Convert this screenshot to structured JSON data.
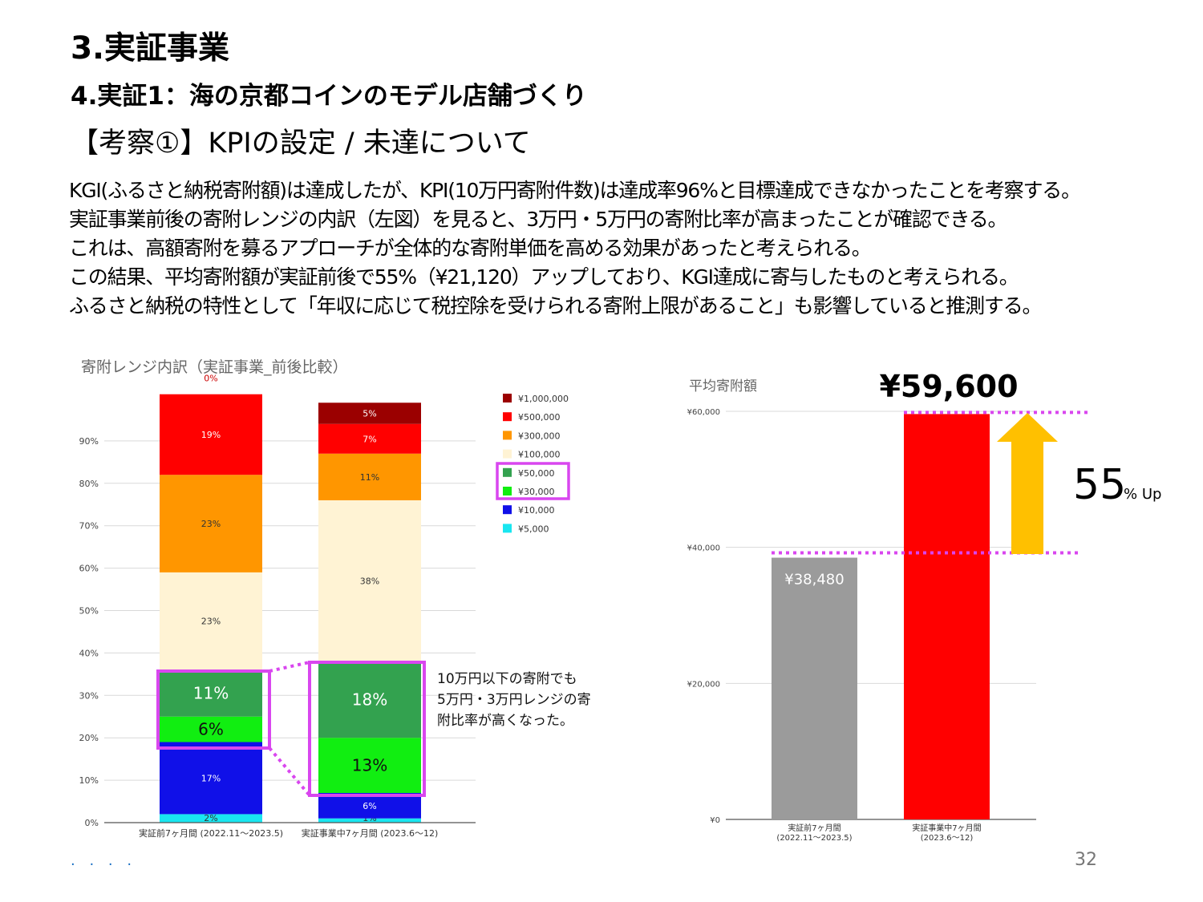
{
  "heading": {
    "section": "3.実証事業",
    "subsection": "4.実証1：海の京都コインのモデル店舗づくり",
    "topic": "【考察①】KPIの設定 / 未達について"
  },
  "body_lines": [
    "KGI(ふるさと納税寄附額)は達成したが、KPI(10万円寄附件数)は達成率96%と目標達成できなかったことを考察する。",
    "実証事業前後の寄附レンジの内訳（左図）を見ると、3万円・5万円の寄附比率が高まったことが確認できる。",
    "これは、高額寄附を募るアプローチが全体的な寄附単価を高める効果があったと考えられる。",
    "この結果、平均寄附額が実証前後で55%（¥21,120）アップしており、KGI達成に寄与したものと考えられる。",
    "ふるさと納税の特性として「年収に応じて税控除を受けられる寄附上限があること」も影響していると推測する。"
  ],
  "chart_data": [
    {
      "type": "bar",
      "stacked": true,
      "title": "寄附レンジ内訳（実証事業_前後比較）",
      "categories": [
        "実証前7ヶ月間 (2022.11～2023.5)",
        "実証事業中7ヶ月間 (2023.6～12)"
      ],
      "ylim": [
        0,
        100
      ],
      "yticks": [
        "0%",
        "10%",
        "20%",
        "30%",
        "40%",
        "50%",
        "60%",
        "70%",
        "80%",
        "90%"
      ],
      "series": [
        {
          "name": "¥5,000",
          "color": "#19e6f0",
          "values": [
            2,
            1
          ],
          "labels": [
            "2%",
            "1%"
          ],
          "emph": false
        },
        {
          "name": "¥10,000",
          "color": "#1010e8",
          "values": [
            17,
            6
          ],
          "labels": [
            "17%",
            "6%"
          ],
          "emph": false
        },
        {
          "name": "¥30,000",
          "color": "#11ee11",
          "values": [
            6,
            13
          ],
          "labels": [
            "6%",
            "13%"
          ],
          "emph": true
        },
        {
          "name": "¥50,000",
          "color": "#33a24f",
          "values": [
            11,
            18
          ],
          "labels": [
            "11%",
            "18%"
          ],
          "emph": true
        },
        {
          "name": "¥100,000",
          "color": "#fff3d4",
          "values": [
            23,
            38
          ],
          "labels": [
            "23%",
            "38%"
          ],
          "emph": false
        },
        {
          "name": "¥300,000",
          "color": "#ff9600",
          "values": [
            23,
            11
          ],
          "labels": [
            "23%",
            "11%"
          ],
          "emph": false
        },
        {
          "name": "¥500,000",
          "color": "#ff0000",
          "values": [
            19,
            7
          ],
          "labels": [
            "19%",
            "7%"
          ],
          "emph": false
        },
        {
          "name": "¥1,000,000",
          "color": "#9b0000",
          "values": [
            0,
            5
          ],
          "labels": [
            "0%",
            "5%"
          ],
          "emph": false
        }
      ],
      "legend": [
        "¥1,000,000",
        "¥500,000",
        "¥300,000",
        "¥100,000",
        "¥50,000",
        "¥30,000",
        "¥10,000",
        "¥5,000"
      ],
      "legend_position": "right",
      "annotation": [
        "10万円以下の寄附でも",
        "5万円・3万円レンジの寄",
        "附比率が高くなった。"
      ]
    },
    {
      "type": "bar",
      "title": "平均寄附額",
      "categories": [
        [
          "実証前7ヶ月間",
          "(2022.11～2023.5)"
        ],
        [
          "実証事業中7ヶ月間",
          "(2023.6～12)"
        ]
      ],
      "values": [
        38480,
        59600
      ],
      "value_labels": [
        "¥38,480",
        "¥59,600"
      ],
      "colors": [
        "#9b9b9b",
        "#ff0000"
      ],
      "ylim": [
        0,
        60000
      ],
      "yticks": [
        0,
        20000,
        40000,
        60000
      ],
      "ytick_labels": [
        "¥0",
        "¥20,000",
        "¥40,000",
        "¥60,000"
      ],
      "increase": {
        "number": "55",
        "suffix": "% Up"
      }
    }
  ],
  "page_number": "32",
  "footer_mark": "· · · ·",
  "colors": {
    "highlight": "#d946ef",
    "arrow": "#ffc000",
    "grid": "#d9d9d9",
    "axis": "#555555"
  }
}
